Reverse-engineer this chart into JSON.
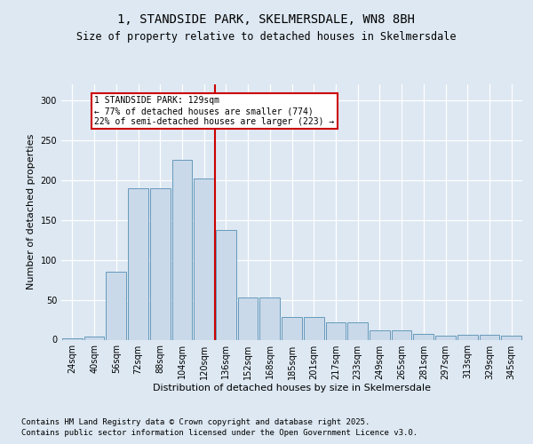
{
  "title1": "1, STANDSIDE PARK, SKELMERSDALE, WN8 8BH",
  "title2": "Size of property relative to detached houses in Skelmersdale",
  "xlabel": "Distribution of detached houses by size in Skelmersdale",
  "ylabel": "Number of detached properties",
  "categories": [
    "24sqm",
    "40sqm",
    "56sqm",
    "72sqm",
    "88sqm",
    "104sqm",
    "120sqm",
    "136sqm",
    "152sqm",
    "168sqm",
    "185sqm",
    "201sqm",
    "217sqm",
    "233sqm",
    "249sqm",
    "265sqm",
    "281sqm",
    "297sqm",
    "313sqm",
    "329sqm",
    "345sqm"
  ],
  "values": [
    2,
    4,
    85,
    190,
    190,
    225,
    202,
    138,
    53,
    53,
    28,
    28,
    22,
    22,
    12,
    12,
    7,
    5,
    6,
    6,
    5
  ],
  "bar_color": "#c9d9ea",
  "bar_edge_color": "#6699bb",
  "vline_color": "#cc0000",
  "annotation_text": "1 STANDSIDE PARK: 129sqm\n← 77% of detached houses are smaller (774)\n22% of semi-detached houses are larger (223) →",
  "annotation_box_color": "#ffffff",
  "annotation_box_edge": "#cc0000",
  "ylim": [
    0,
    320
  ],
  "yticks": [
    0,
    50,
    100,
    150,
    200,
    250,
    300
  ],
  "footer1": "Contains HM Land Registry data © Crown copyright and database right 2025.",
  "footer2": "Contains public sector information licensed under the Open Government Licence v3.0.",
  "bg_color": "#dde8f2",
  "plot_bg_color": "#dde8f2",
  "title_fontsize": 10,
  "subtitle_fontsize": 8.5,
  "axis_label_fontsize": 8,
  "tick_fontsize": 7,
  "footer_fontsize": 6.5
}
